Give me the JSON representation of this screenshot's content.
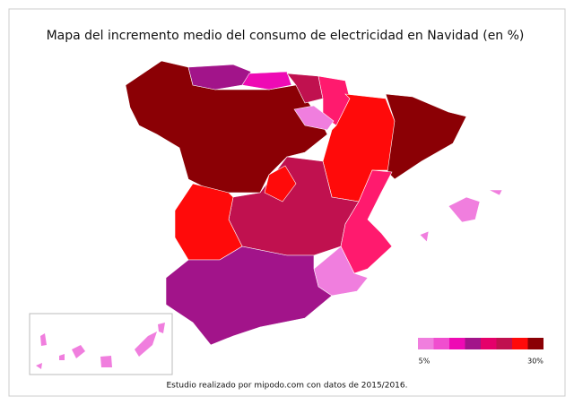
{
  "header": {
    "title": "Mapa del incremento medio del consumo de electricidad en Navidad (en %)"
  },
  "legend": {
    "colors": [
      "#f07ede",
      "#f04ecf",
      "#ee0ab4",
      "#a2148a",
      "#e5006a",
      "#c0114f",
      "#ff0a0a",
      "#8b0005"
    ],
    "min_label": "5%",
    "max_label": "30%"
  },
  "footer": {
    "text": "Estudio realizado por mipodo.com con datos de 2015/2016."
  }
}
